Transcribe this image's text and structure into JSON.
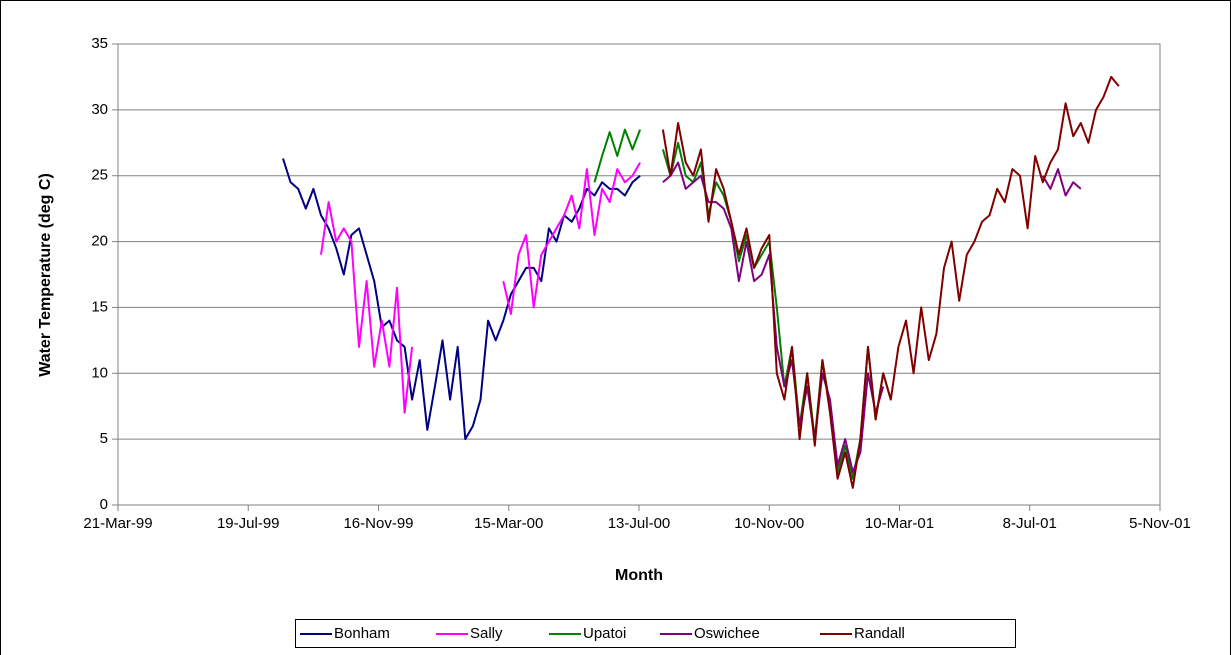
{
  "chart_data": {
    "type": "line",
    "xlabel": "Month",
    "ylabel": "Water Temperature (deg C)",
    "xlim": [
      "1999-03-21",
      "2001-11-05"
    ],
    "xticks": [
      {
        "value": "1999-03-21",
        "label": "21-Mar-99"
      },
      {
        "value": "1999-07-19",
        "label": "19-Jul-99"
      },
      {
        "value": "1999-11-16",
        "label": "16-Nov-99"
      },
      {
        "value": "2000-03-15",
        "label": "15-Mar-00"
      },
      {
        "value": "2000-07-13",
        "label": "13-Jul-00"
      },
      {
        "value": "2000-11-10",
        "label": "10-Nov-00"
      },
      {
        "value": "2001-03-10",
        "label": "10-Mar-01"
      },
      {
        "value": "2001-07-08",
        "label": "8-Jul-01"
      },
      {
        "value": "2001-11-05",
        "label": "5-Nov-01"
      }
    ],
    "ylim": [
      0,
      35
    ],
    "yticks": [
      0,
      5,
      10,
      15,
      20,
      25,
      30,
      35
    ],
    "grid": true,
    "legend": "bottom",
    "series": [
      {
        "name": "Bonham",
        "color": "#000080",
        "x": [
          "1999-08-20",
          "1999-08-27",
          "1999-09-03",
          "1999-09-10",
          "1999-09-17",
          "1999-09-24",
          "1999-10-01",
          "1999-10-08",
          "1999-10-15",
          "1999-10-22",
          "1999-10-29",
          "1999-11-05",
          "1999-11-12",
          "1999-11-19",
          "1999-11-26",
          "1999-12-03",
          "1999-12-10",
          "1999-12-17",
          "1999-12-24",
          "1999-12-31",
          "2000-01-07",
          "2000-01-14",
          "2000-01-21",
          "2000-01-28",
          "2000-02-04",
          "2000-02-11",
          "2000-02-18",
          "2000-02-25",
          "2000-03-03",
          "2000-03-10",
          "2000-03-17",
          "2000-03-24",
          "2000-03-31",
          "2000-04-07",
          "2000-04-14",
          "2000-04-21",
          "2000-04-28",
          "2000-05-05",
          "2000-05-12",
          "2000-05-19",
          "2000-05-26",
          "2000-06-02",
          "2000-06-09",
          "2000-06-16",
          "2000-06-23",
          "2000-06-30",
          "2000-07-07",
          "2000-07-14"
        ],
        "values": [
          26.3,
          24.5,
          24,
          22.5,
          24,
          22,
          21,
          19.5,
          17.5,
          20.5,
          21,
          19,
          17,
          13.5,
          14,
          12.5,
          12,
          8,
          11,
          5.7,
          9,
          12.5,
          8,
          12,
          5,
          6,
          8,
          14,
          12.5,
          14,
          16,
          17,
          18,
          18,
          17,
          21,
          20,
          22,
          21.5,
          22.5,
          24,
          23.5,
          24.5,
          24,
          24,
          23.5,
          24.5,
          25
        ]
      },
      {
        "name": "Sally",
        "color": "#ff00ff",
        "x": [
          "1999-09-24",
          "1999-10-01",
          "1999-10-08",
          "1999-10-15",
          "1999-10-22",
          "1999-10-29",
          "1999-11-05",
          "1999-11-12",
          "1999-11-19",
          "1999-11-26",
          "1999-12-03",
          "1999-12-10",
          "1999-12-17",
          "2000-02-04",
          "2000-03-10",
          "2000-03-17",
          "2000-03-24",
          "2000-03-31",
          "2000-04-07",
          "2000-04-14",
          "2000-04-21",
          "2000-04-28",
          "2000-05-05",
          "2000-05-12",
          "2000-05-19",
          "2000-05-26",
          "2000-06-02",
          "2000-06-09",
          "2000-06-16",
          "2000-06-23",
          "2000-06-30",
          "2000-07-07",
          "2000-07-14"
        ],
        "values": [
          19,
          23,
          20,
          21,
          20,
          12,
          17,
          10.5,
          14,
          10.5,
          16.5,
          7,
          12,
          null,
          17,
          14.5,
          19,
          20.5,
          15,
          19,
          20,
          21,
          22,
          23.5,
          21,
          25.5,
          20.5,
          24,
          23,
          25.5,
          24.5,
          25,
          26
        ]
      },
      {
        "name": "Upatoi",
        "color": "#008000",
        "x": [
          "2000-06-02",
          "2000-06-09",
          "2000-06-16",
          "2000-06-23",
          "2000-06-30",
          "2000-07-07",
          "2000-07-14",
          "2000-07-21",
          "2000-08-04",
          "2000-08-11",
          "2000-08-18",
          "2000-08-25",
          "2000-09-01",
          "2000-09-08",
          "2000-09-15",
          "2000-09-22",
          "2000-09-29",
          "2000-10-06",
          "2000-10-13",
          "2000-10-20",
          "2000-10-27",
          "2000-11-03",
          "2000-11-10",
          "2000-11-17",
          "2000-11-24",
          "2000-12-01",
          "2000-12-08",
          "2000-12-15",
          "2000-12-22",
          "2000-12-29",
          "2001-01-05",
          "2001-01-12",
          "2001-01-19",
          "2001-01-26",
          "2001-02-02",
          "2001-02-09",
          "2001-02-16",
          "2001-02-23",
          "2001-03-02"
        ],
        "values": [
          24.5,
          26.5,
          28.3,
          26.5,
          28.5,
          27,
          28.5,
          null,
          27,
          25,
          27.5,
          25,
          24.5,
          26,
          22,
          24.5,
          23.5,
          21.5,
          18.5,
          20.5,
          18,
          19,
          20,
          15,
          9,
          12,
          6,
          10,
          5,
          11,
          7.5,
          2.5,
          4.5,
          2,
          5,
          12,
          6.5,
          10,
          8
        ]
      },
      {
        "name": "Oswichee",
        "color": "#800080",
        "x": [
          "2000-08-04",
          "2000-08-11",
          "2000-08-18",
          "2000-08-25",
          "2000-09-01",
          "2000-09-08",
          "2000-09-15",
          "2000-09-22",
          "2000-09-29",
          "2000-10-06",
          "2000-10-13",
          "2000-10-20",
          "2000-10-27",
          "2000-11-03",
          "2000-11-10",
          "2000-11-17",
          "2000-11-24",
          "2000-12-01",
          "2000-12-08",
          "2000-12-15",
          "2000-12-22",
          "2000-12-29",
          "2001-01-05",
          "2001-01-12",
          "2001-01-19",
          "2001-01-26",
          "2001-02-02",
          "2001-02-09",
          "2001-02-16",
          "2001-02-23",
          "2001-05-11",
          "2001-07-20",
          "2001-07-27",
          "2001-08-03",
          "2001-08-10",
          "2001-08-17",
          "2001-08-24"
        ],
        "values": [
          24.5,
          25,
          26,
          24,
          24.5,
          25,
          23,
          23,
          22.5,
          21,
          17,
          20,
          17,
          17.5,
          19,
          12,
          9,
          11,
          6,
          9,
          5,
          10,
          8,
          3,
          5,
          2.5,
          4,
          10,
          7,
          9,
          null,
          25,
          24,
          25.5,
          23.5,
          24.5,
          24
        ]
      },
      {
        "name": "Randall",
        "color": "#800000",
        "x": [
          "2000-08-04",
          "2000-08-11",
          "2000-08-18",
          "2000-08-25",
          "2000-09-01",
          "2000-09-08",
          "2000-09-15",
          "2000-09-22",
          "2000-09-29",
          "2000-10-06",
          "2000-10-13",
          "2000-10-20",
          "2000-10-27",
          "2000-11-03",
          "2000-11-10",
          "2000-11-17",
          "2000-11-24",
          "2000-12-01",
          "2000-12-08",
          "2000-12-15",
          "2000-12-22",
          "2000-12-29",
          "2001-01-05",
          "2001-01-12",
          "2001-01-19",
          "2001-01-26",
          "2001-02-02",
          "2001-02-09",
          "2001-02-16",
          "2001-02-23",
          "2001-03-02",
          "2001-03-09",
          "2001-03-16",
          "2001-03-23",
          "2001-03-30",
          "2001-04-06",
          "2001-04-13",
          "2001-04-20",
          "2001-04-27",
          "2001-05-04",
          "2001-05-11",
          "2001-05-18",
          "2001-05-25",
          "2001-06-01",
          "2001-06-08",
          "2001-06-15",
          "2001-06-22",
          "2001-06-29",
          "2001-07-06",
          "2001-07-13",
          "2001-07-20",
          "2001-07-27",
          "2001-08-03",
          "2001-08-10",
          "2001-08-17",
          "2001-08-24",
          "2001-08-31",
          "2001-09-07",
          "2001-09-14",
          "2001-09-21",
          "2001-09-28"
        ],
        "values": [
          28.5,
          25,
          29,
          26,
          25,
          27,
          21.5,
          25.5,
          24,
          21.5,
          19,
          21,
          18,
          19.5,
          20.5,
          10,
          8,
          12,
          5,
          10,
          4.5,
          11,
          7,
          2,
          4,
          1.3,
          5,
          12,
          6.5,
          10,
          8,
          12,
          14,
          10,
          15,
          11,
          13,
          18,
          20,
          15.5,
          19,
          20,
          21.5,
          22,
          24,
          23,
          25.5,
          25,
          21,
          26.5,
          24.5,
          26,
          27,
          30.5,
          28,
          29,
          27.5,
          30,
          31,
          32.5,
          31.8
        ]
      }
    ]
  }
}
